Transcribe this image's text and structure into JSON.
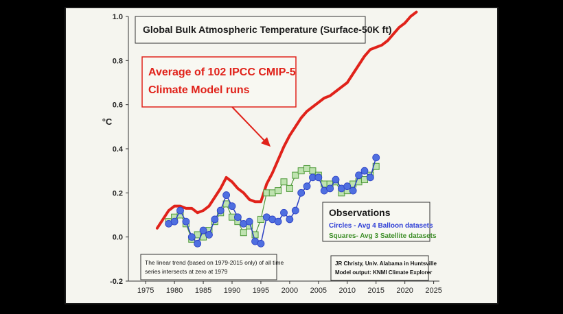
{
  "chart_data": {
    "type": "line",
    "title": "Global Bulk Atmospheric Temperature (Surface-50K ft)",
    "ylabel": "°C",
    "xlabel": "",
    "xlim": [
      1972,
      2026
    ],
    "ylim": [
      -0.2,
      1.0
    ],
    "x_ticks": [
      1975,
      1980,
      1985,
      1990,
      1995,
      2000,
      2005,
      2010,
      2015,
      2020,
      2025
    ],
    "y_ticks": [
      -0.2,
      0.0,
      0.2,
      0.4,
      0.6,
      0.8,
      1.0
    ],
    "y_tick_labels": [
      "-0.2",
      "0.0",
      "0.2",
      "0.4",
      "0.6",
      "0.8",
      "1.0"
    ],
    "annotations": {
      "model_label_line1": "Average of 102 IPCC CMIP-5",
      "model_label_line2": "Climate Model runs",
      "observations_title": "Observations",
      "circles_label": "Circles - Avg 4 Balloon datasets",
      "squares_label": "Squares- Avg 3 Satellite datasets",
      "note_line1": "The linear trend (based on 1979-2015 only) of all time",
      "note_line2": "series intersects at zero at 1979",
      "credit_line1": "JR Christy, Univ. Alabama in Huntsville",
      "credit_line2": "Model output: KNMI Climate Explorer"
    },
    "colors": {
      "model": "#e0221a",
      "balloon_fill": "#4f6fe0",
      "balloon_line": "#2b3fc4",
      "satellite_fill": "#bfe3b0",
      "satellite_line": "#4f9a3a"
    },
    "series": [
      {
        "name": "Average of 102 IPCC CMIP-5 Climate Model runs",
        "style": "line",
        "x": [
          1977,
          1978,
          1979,
          1980,
          1981,
          1982,
          1983,
          1984,
          1985,
          1986,
          1987,
          1988,
          1989,
          1990,
          1991,
          1992,
          1993,
          1994,
          1995,
          1996,
          1997,
          1998,
          1999,
          2000,
          2001,
          2002,
          2003,
          2004,
          2005,
          2006,
          2007,
          2008,
          2009,
          2010,
          2011,
          2012,
          2013,
          2014,
          2015,
          2016,
          2017,
          2018,
          2019,
          2020,
          2021,
          2022
        ],
        "y": [
          0.04,
          0.08,
          0.12,
          0.14,
          0.14,
          0.13,
          0.13,
          0.11,
          0.12,
          0.14,
          0.18,
          0.22,
          0.27,
          0.25,
          0.22,
          0.2,
          0.17,
          0.16,
          0.16,
          0.24,
          0.29,
          0.35,
          0.41,
          0.46,
          0.5,
          0.54,
          0.57,
          0.59,
          0.61,
          0.63,
          0.64,
          0.66,
          0.68,
          0.7,
          0.74,
          0.78,
          0.82,
          0.85,
          0.86,
          0.87,
          0.89,
          0.92,
          0.95,
          0.97,
          1.0,
          1.02
        ]
      },
      {
        "name": "Circles - Avg 4 Balloon datasets",
        "style": "circles",
        "x": [
          1979,
          1980,
          1981,
          1982,
          1983,
          1984,
          1985,
          1986,
          1987,
          1988,
          1989,
          1990,
          1991,
          1992,
          1993,
          1994,
          1995,
          1996,
          1997,
          1998,
          1999,
          2000,
          2001,
          2002,
          2003,
          2004,
          2005,
          2006,
          2007,
          2008,
          2009,
          2010,
          2011,
          2012,
          2013,
          2014,
          2015
        ],
        "y": [
          0.06,
          0.07,
          0.12,
          0.07,
          0.0,
          -0.03,
          0.03,
          0.01,
          0.08,
          0.12,
          0.19,
          0.14,
          0.09,
          0.06,
          0.07,
          -0.02,
          -0.03,
          0.09,
          0.08,
          0.07,
          0.11,
          0.08,
          0.12,
          0.2,
          0.23,
          0.27,
          0.27,
          0.21,
          0.22,
          0.26,
          0.22,
          0.23,
          0.21,
          0.28,
          0.3,
          0.27,
          0.36
        ]
      },
      {
        "name": "Squares- Avg 3 Satellite datasets",
        "style": "squares",
        "x": [
          1979,
          1980,
          1981,
          1982,
          1983,
          1984,
          1985,
          1986,
          1987,
          1988,
          1989,
          1990,
          1991,
          1992,
          1993,
          1994,
          1995,
          1996,
          1997,
          1998,
          1999,
          2000,
          2001,
          2002,
          2003,
          2004,
          2005,
          2006,
          2007,
          2008,
          2009,
          2010,
          2011,
          2012,
          2013,
          2014,
          2015
        ],
        "y": [
          0.07,
          0.09,
          0.1,
          0.06,
          -0.01,
          0.01,
          0.0,
          0.03,
          0.07,
          0.11,
          0.15,
          0.09,
          0.07,
          0.02,
          0.05,
          0.01,
          0.08,
          0.2,
          0.2,
          0.21,
          0.25,
          0.22,
          0.28,
          0.3,
          0.31,
          0.3,
          0.28,
          0.24,
          0.24,
          0.25,
          0.2,
          0.21,
          0.24,
          0.25,
          0.26,
          0.28,
          0.32
        ]
      }
    ]
  }
}
